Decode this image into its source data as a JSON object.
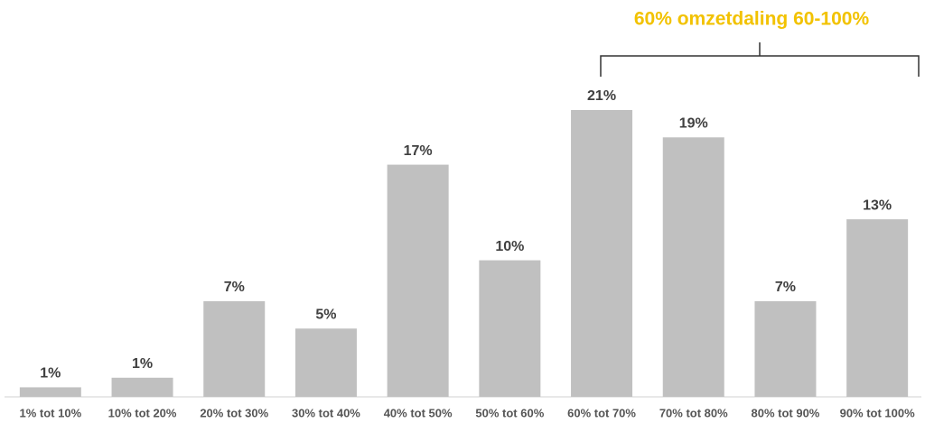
{
  "chart_data": {
    "type": "bar",
    "annotation": "60% omzetdaling 60-100%",
    "categories": [
      "1% tot 10%",
      "10% tot 20%",
      "20% tot 30%",
      "30% tot 40%",
      "40% tot 50%",
      "50% tot 60%",
      "60% tot 70%",
      "70% tot 80%",
      "80% tot 90%",
      "90% tot 100%"
    ],
    "values": [
      0.7,
      1.4,
      7,
      5,
      17,
      10,
      21,
      19,
      7,
      13
    ],
    "value_labels": [
      "1%",
      "1%",
      "7%",
      "5%",
      "17%",
      "10%",
      "21%",
      "19%",
      "7%",
      "13%"
    ],
    "color": "#c0c0c0"
  }
}
